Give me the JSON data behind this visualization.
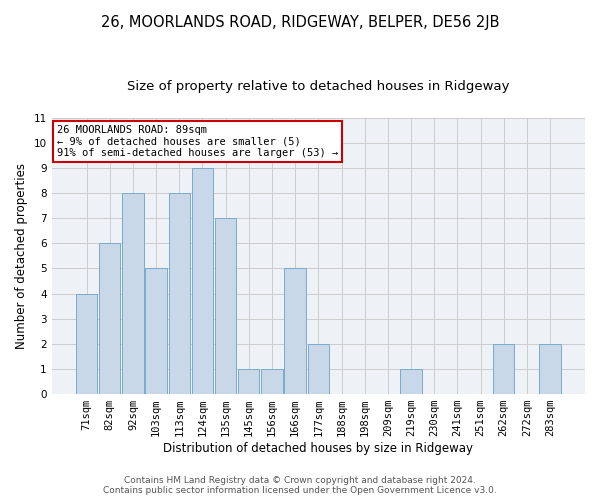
{
  "title": "26, MOORLANDS ROAD, RIDGEWAY, BELPER, DE56 2JB",
  "subtitle": "Size of property relative to detached houses in Ridgeway",
  "xlabel": "Distribution of detached houses by size in Ridgeway",
  "ylabel": "Number of detached properties",
  "categories": [
    "71sqm",
    "82sqm",
    "92sqm",
    "103sqm",
    "113sqm",
    "124sqm",
    "135sqm",
    "145sqm",
    "156sqm",
    "166sqm",
    "177sqm",
    "188sqm",
    "198sqm",
    "209sqm",
    "219sqm",
    "230sqm",
    "241sqm",
    "251sqm",
    "262sqm",
    "272sqm",
    "283sqm"
  ],
  "values": [
    4,
    6,
    8,
    5,
    8,
    9,
    7,
    1,
    1,
    5,
    2,
    0,
    0,
    0,
    1,
    0,
    0,
    0,
    2,
    0,
    2
  ],
  "bar_color": "#c8d8e8",
  "bar_edgecolor": "#7aabcc",
  "annotation_box_text": "26 MOORLANDS ROAD: 89sqm\n← 9% of detached houses are smaller (5)\n91% of semi-detached houses are larger (53) →",
  "annotation_box_color": "white",
  "annotation_box_edgecolor": "#cc0000",
  "ylim": [
    0,
    11
  ],
  "yticks": [
    0,
    1,
    2,
    3,
    4,
    5,
    6,
    7,
    8,
    9,
    10,
    11
  ],
  "grid_color": "#cccccc",
  "background_color": "#eef2f7",
  "footer_line1": "Contains HM Land Registry data © Crown copyright and database right 2024.",
  "footer_line2": "Contains public sector information licensed under the Open Government Licence v3.0.",
  "title_fontsize": 10.5,
  "subtitle_fontsize": 9.5,
  "axis_label_fontsize": 8.5,
  "tick_fontsize": 7.5,
  "annotation_fontsize": 7.5,
  "footer_fontsize": 6.5
}
